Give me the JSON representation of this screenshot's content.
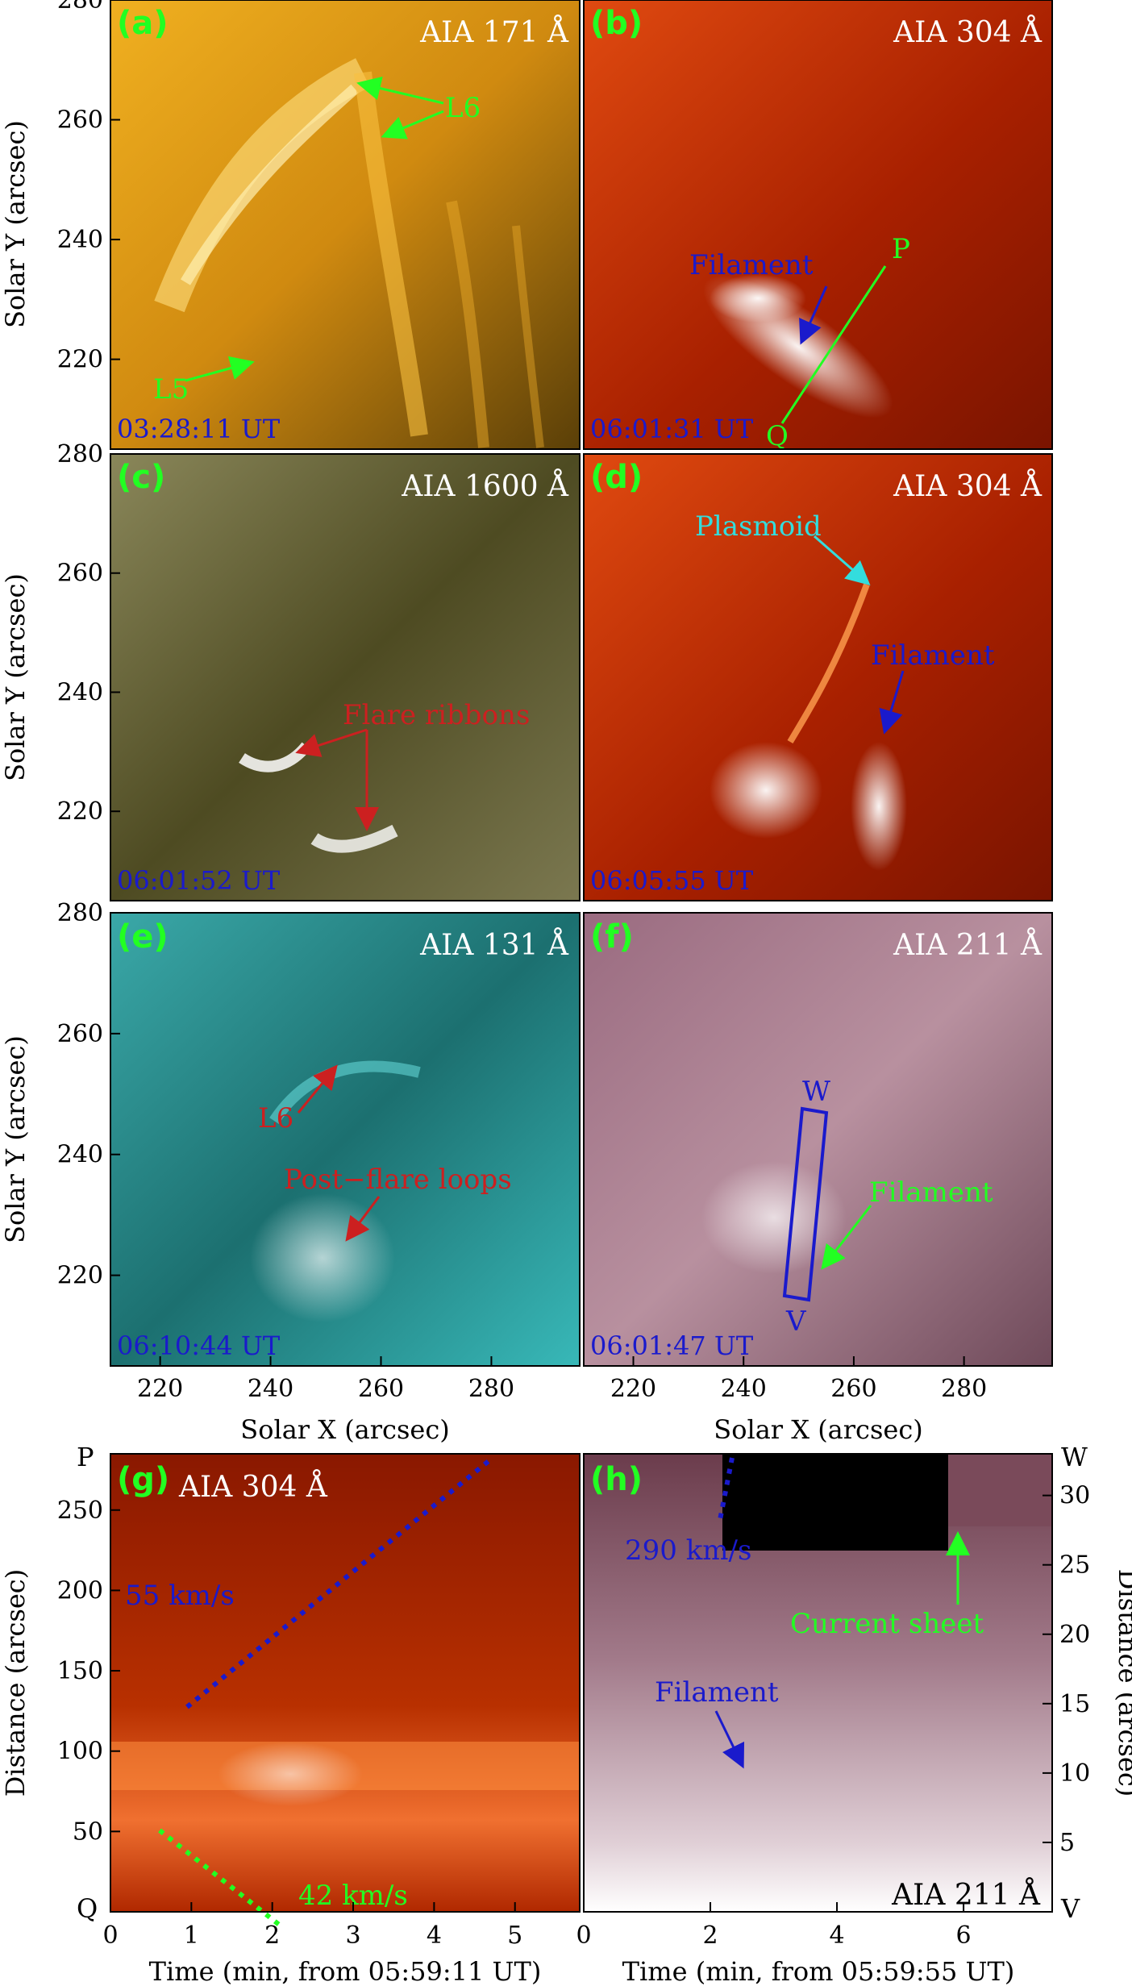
{
  "panels": {
    "a": {
      "tag": "(a)",
      "channel": "AIA 171 Å",
      "time": "03:28:11 UT",
      "labels": {
        "l6": "L6",
        "l5": "L5"
      }
    },
    "b": {
      "tag": "(b)",
      "channel": "AIA 304 Å",
      "time": "06:01:31 UT",
      "labels": {
        "filament": "Filament",
        "p": "P",
        "q": "Q"
      }
    },
    "c": {
      "tag": "(c)",
      "channel": "AIA 1600 Å",
      "time": "06:01:52 UT",
      "labels": {
        "ribbons": "Flare ribbons"
      }
    },
    "d": {
      "tag": "(d)",
      "channel": "AIA 304 Å",
      "time": "06:05:55 UT",
      "labels": {
        "plasmoid": "Plasmoid",
        "filament": "Filament"
      }
    },
    "e": {
      "tag": "(e)",
      "channel": "AIA 131 Å",
      "time": "06:10:44 UT",
      "labels": {
        "l6": "L6",
        "loops": "Post−flare loops"
      }
    },
    "f": {
      "tag": "(f)",
      "channel": "AIA 211 Å",
      "time": "06:01:47 UT",
      "labels": {
        "w": "W",
        "v": "V",
        "filament": "Filament"
      }
    },
    "g": {
      "tag": "(g)",
      "channel": "AIA 304 Å",
      "labels": {
        "v55": "55 km/s",
        "v42": "42 km/s",
        "p": "P",
        "q": "Q"
      }
    },
    "h": {
      "tag": "(h)",
      "channel": "AIA 211 Å",
      "labels": {
        "v290": "290 km/s",
        "filament": "Filament",
        "sheet": "Current sheet",
        "w": "W",
        "v": "V"
      }
    }
  },
  "axes": {
    "solar_y_label": "Solar Y (arcsec)",
    "solar_x_label": "Solar X (arcsec)",
    "solar_y_ticks": [
      "220",
      "240",
      "260",
      "280"
    ],
    "solar_x_ticks": [
      "220",
      "240",
      "260",
      "280"
    ],
    "g_xlabel": "Time (min, from 05:59:11 UT)",
    "h_xlabel": "Time (min, from 05:59:55 UT)",
    "g_ylabel": "Distance (arcsec)",
    "h_ylabel": "Distance (arcsec)",
    "g_xticks": [
      "0",
      "1",
      "2",
      "3",
      "4",
      "5"
    ],
    "g_yticks": [
      "50",
      "100",
      "150",
      "200",
      "250"
    ],
    "h_xticks": [
      "0",
      "2",
      "4",
      "6"
    ],
    "h_yticks": [
      "5",
      "10",
      "15",
      "20",
      "25",
      "30"
    ]
  },
  "colors": {
    "aia171": "#e09a10",
    "aia304": "#c22a00",
    "aia1600": "#6d6a3c",
    "aia131": "#34c4c4",
    "aia211": "#9d6f82",
    "annot_green": "#22ff22",
    "annot_blue": "#1a1acc",
    "annot_red": "#cc2020",
    "annot_cyan": "#33dddd"
  }
}
